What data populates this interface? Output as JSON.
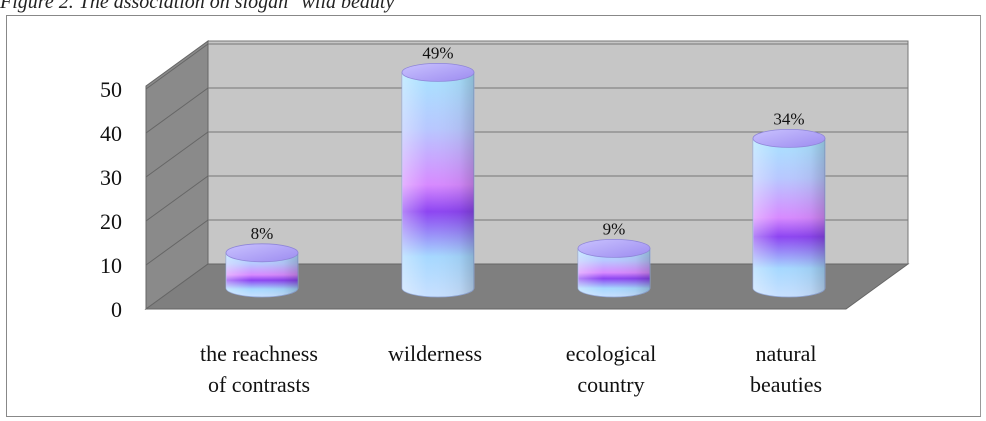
{
  "caption": "Figure 2. The association on slogan \"wild beauty\"",
  "chart_data": {
    "type": "bar",
    "style": "3d-cylinder",
    "categories": [
      [
        "the reachness",
        "of contrasts"
      ],
      [
        "wilderness"
      ],
      [
        "ecological",
        "country"
      ],
      [
        "natural",
        "beauties"
      ]
    ],
    "values": [
      8,
      49,
      9,
      34
    ],
    "data_labels": [
      "8%",
      "49%",
      "9%",
      "34%"
    ],
    "ylim": [
      0,
      50
    ],
    "yticks": [
      0,
      10,
      20,
      30,
      40,
      50
    ],
    "grid": true,
    "colors": {
      "wall": "#c6c6c6",
      "side_wall": "#8a8a8a",
      "floor": "#7f7f7f",
      "cyl_light": "#9fe0ff",
      "cyl_mid": "#d58cff",
      "cyl_dark": "#8b3cf0"
    }
  }
}
